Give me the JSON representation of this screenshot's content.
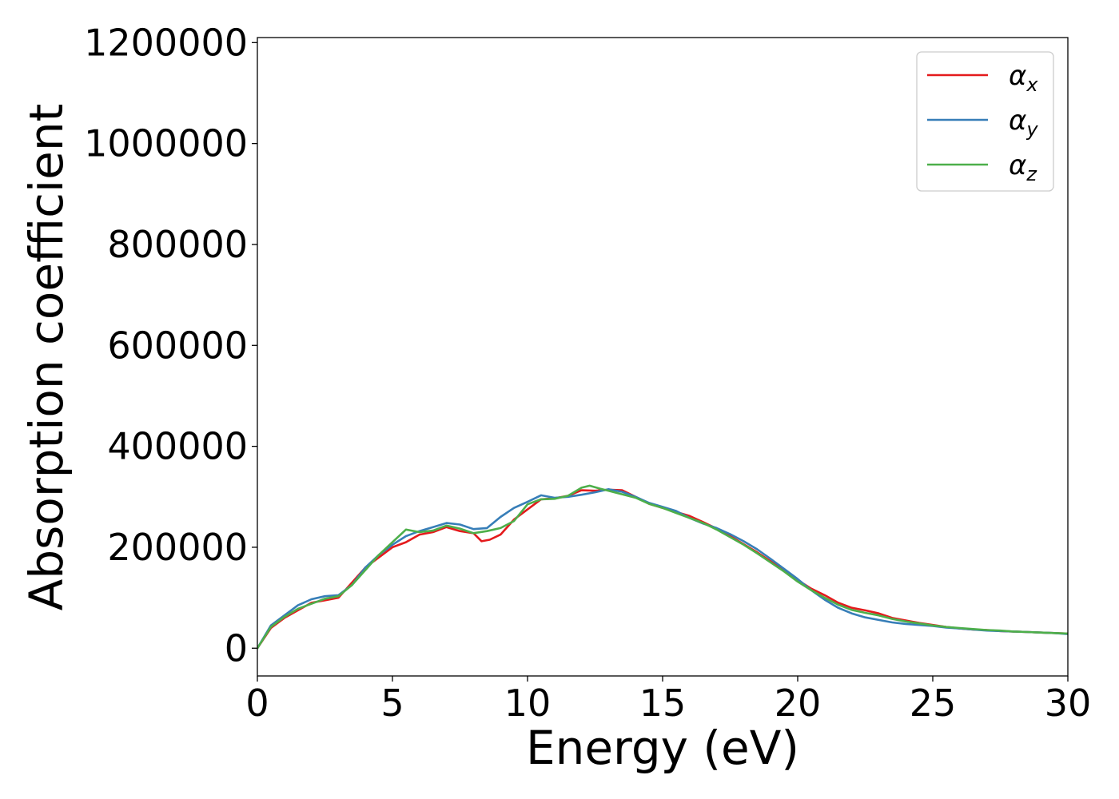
{
  "chart_data": {
    "type": "line",
    "xlabel": "Energy (eV)",
    "ylabel": "Absorption coefficient",
    "xlim": [
      0,
      30
    ],
    "ylim": [
      -55000,
      1210000
    ],
    "xticks": [
      0,
      5,
      10,
      15,
      20,
      25,
      30
    ],
    "yticks": [
      0,
      200000,
      400000,
      600000,
      800000,
      1000000,
      1200000
    ],
    "grid": false,
    "legend_position": "top-right",
    "series": [
      {
        "name": "α",
        "subscript": "x",
        "color": "#e41a1c",
        "x": [
          0,
          0.5,
          1.0,
          1.5,
          2.0,
          2.5,
          3.0,
          3.5,
          4.0,
          4.5,
          5.0,
          5.5,
          6.0,
          6.5,
          7.0,
          7.5,
          8.0,
          8.3,
          8.6,
          9.0,
          9.5,
          10.0,
          10.5,
          11.0,
          11.5,
          12.0,
          12.5,
          13.0,
          13.5,
          14.0,
          14.5,
          15.0,
          15.5,
          16.0,
          16.5,
          17.0,
          17.5,
          18.0,
          18.5,
          19.0,
          19.5,
          20.0,
          20.5,
          21.0,
          21.5,
          22.0,
          22.5,
          23.0,
          23.5,
          24.0,
          24.5,
          25.0,
          25.5,
          26.0,
          26.5,
          27.0,
          27.5,
          28.0,
          28.5,
          29.0,
          29.5,
          30.0
        ],
        "y": [
          0,
          40000,
          60000,
          75000,
          90000,
          95000,
          100000,
          130000,
          160000,
          180000,
          200000,
          210000,
          225000,
          230000,
          240000,
          232000,
          228000,
          212000,
          215000,
          225000,
          255000,
          275000,
          295000,
          297000,
          302000,
          313000,
          312000,
          314000,
          313000,
          300000,
          286000,
          278000,
          270000,
          262000,
          250000,
          237000,
          222000,
          206000,
          190000,
          172000,
          153000,
          135000,
          118000,
          105000,
          90000,
          80000,
          75000,
          69000,
          60000,
          55000,
          50000,
          46000,
          42000,
          39000,
          37000,
          36000,
          34000,
          33000,
          32000,
          31000,
          30000,
          29000
        ]
      },
      {
        "name": "α",
        "subscript": "y",
        "color": "#377eb8",
        "x": [
          0,
          0.5,
          1.0,
          1.5,
          2.0,
          2.5,
          3.0,
          3.5,
          4.0,
          4.5,
          5.0,
          5.5,
          6.0,
          6.5,
          7.0,
          7.5,
          8.0,
          8.5,
          9.0,
          9.5,
          10.0,
          10.5,
          11.0,
          11.5,
          12.0,
          12.5,
          13.0,
          13.5,
          14.0,
          14.5,
          15.0,
          15.5,
          16.0,
          16.5,
          17.0,
          17.5,
          18.0,
          18.5,
          19.0,
          19.5,
          20.0,
          20.5,
          21.0,
          21.5,
          22.0,
          22.5,
          23.0,
          23.5,
          24.0,
          24.5,
          25.0,
          25.5,
          26.0,
          26.5,
          27.0,
          27.5,
          28.0,
          28.5,
          29.0,
          29.5,
          30.0
        ],
        "y": [
          0,
          45000,
          65000,
          85000,
          97000,
          103000,
          105000,
          125000,
          160000,
          185000,
          205000,
          222000,
          232000,
          240000,
          248000,
          245000,
          236000,
          238000,
          260000,
          278000,
          290000,
          303000,
          298000,
          300000,
          304000,
          309000,
          315000,
          310000,
          300000,
          288000,
          280000,
          272000,
          258000,
          247000,
          238000,
          226000,
          212000,
          196000,
          177000,
          157000,
          137000,
          115000,
          96000,
          80000,
          69000,
          61000,
          56000,
          51000,
          48000,
          46000,
          44000,
          41000,
          39000,
          37000,
          35000,
          34000,
          33000,
          32000,
          31000,
          30000,
          28000
        ]
      },
      {
        "name": "α",
        "subscript": "z",
        "color": "#4daf4a",
        "x": [
          0,
          0.5,
          1.0,
          1.5,
          2.0,
          2.5,
          3.0,
          3.5,
          4.0,
          4.5,
          5.0,
          5.5,
          6.0,
          6.5,
          7.0,
          7.5,
          8.0,
          8.5,
          9.0,
          9.5,
          10.0,
          10.5,
          11.0,
          11.5,
          12.0,
          12.3,
          12.7,
          13.0,
          13.5,
          14.0,
          14.5,
          15.0,
          15.5,
          16.0,
          16.5,
          17.0,
          17.5,
          18.0,
          18.5,
          19.0,
          19.5,
          20.0,
          20.5,
          21.0,
          21.5,
          22.0,
          22.5,
          23.0,
          23.5,
          24.0,
          24.5,
          25.0,
          25.5,
          26.0,
          26.5,
          27.0,
          27.5,
          28.0,
          28.5,
          29.0,
          29.5,
          30.0
        ],
        "y": [
          0,
          42000,
          62000,
          78000,
          88000,
          98000,
          103000,
          125000,
          155000,
          185000,
          210000,
          235000,
          230000,
          233000,
          243000,
          237000,
          228000,
          232000,
          238000,
          252000,
          285000,
          295000,
          296000,
          302000,
          318000,
          322000,
          316000,
          312000,
          305000,
          298000,
          286000,
          278000,
          268000,
          258000,
          248000,
          235000,
          220000,
          205000,
          188000,
          170000,
          152000,
          132000,
          115000,
          100000,
          86000,
          76000,
          70000,
          65000,
          58000,
          53000,
          49000,
          45000,
          42000,
          40000,
          38000,
          36000,
          35000,
          33000,
          32000,
          31000,
          30000,
          29000
        ]
      }
    ]
  }
}
